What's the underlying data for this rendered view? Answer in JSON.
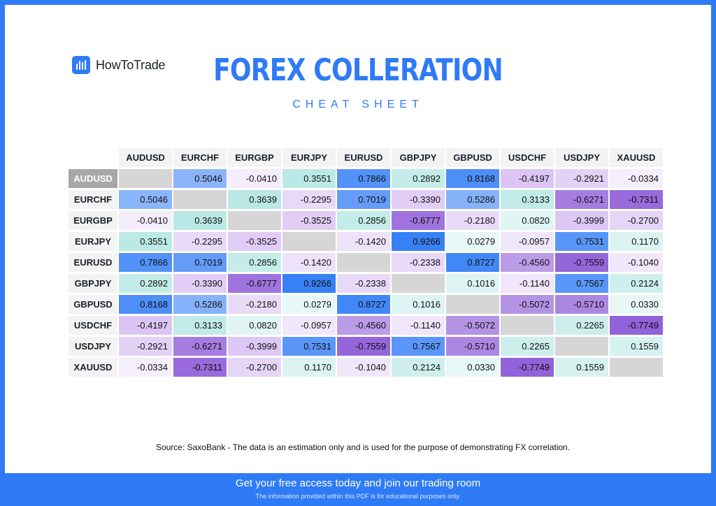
{
  "brand": {
    "name": "HowToTrade",
    "icon": "bar-chart-icon",
    "color": "#2f7bf6"
  },
  "header": {
    "title": "FOREX COLLERATION",
    "subtitle": "CHEAT SHEET"
  },
  "chart_data": {
    "type": "heatmap",
    "columns": [
      "AUDUSD",
      "EURCHF",
      "EURGBP",
      "EURJPY",
      "EURUSD",
      "GBPJPY",
      "GBPUSD",
      "USDCHF",
      "USDJPY",
      "XAUUSD"
    ],
    "rows": [
      {
        "label": "AUDUSD",
        "values": [
          "",
          "0.5046",
          "-0.0410",
          "0.3551",
          "0.7866",
          "0.2892",
          "0.8168",
          "-0.4197",
          "-0.2921",
          "-0.0334"
        ]
      },
      {
        "label": "EURCHF",
        "values": [
          "0.5046",
          "",
          "0.3639",
          "-0.2295",
          "0.7019",
          "-0.3390",
          "0.5286",
          "0.3133",
          "-0.6271",
          "-0.7311"
        ]
      },
      {
        "label": "EURGBP",
        "values": [
          "-0.0410",
          "0.3639",
          "",
          "-0.3525",
          "0.2856",
          "-0.6777",
          "-0.2180",
          "0.0820",
          "-0.3999",
          "-0.2700"
        ]
      },
      {
        "label": "EURJPY",
        "values": [
          "0.3551",
          "-0.2295",
          "-0.3525",
          "",
          "-0.1420",
          "0.9266",
          "0.0279",
          "-0.0957",
          "0.7531",
          "0.1170"
        ]
      },
      {
        "label": "EURUSD",
        "values": [
          "0.7866",
          "0.7019",
          "0.2856",
          "-0.1420",
          "",
          "-0.2338",
          "0.8727",
          "-0.4560",
          "-0.7559",
          "-0.1040"
        ]
      },
      {
        "label": "GBPJPY",
        "values": [
          "0.2892",
          "-0.3390",
          "-0.6777",
          "0.9266",
          "-0.2338",
          "",
          "0.1016",
          "-0.1140",
          "0.7567",
          "0.2124"
        ]
      },
      {
        "label": "GBPUSD",
        "values": [
          "0.8168",
          "0.5286",
          "-0.2180",
          "0.0279",
          "0.8727",
          "0.1016",
          "",
          "-0.5072",
          "-0.5710",
          "0.0330"
        ]
      },
      {
        "label": "USDCHF",
        "values": [
          "-0.4197",
          "0.3133",
          "0.0820",
          "-0.0957",
          "-0.4560",
          "-0.1140",
          "-0.5072",
          "",
          "0.2265",
          "-0.7749"
        ]
      },
      {
        "label": "USDJPY",
        "values": [
          "-0.2921",
          "-0.6271",
          "-0.3999",
          "0.7531",
          "-0.7559",
          "0.7567",
          "-0.5710",
          "0.2265",
          "",
          "0.1559"
        ]
      },
      {
        "label": "XAUUSD",
        "values": [
          "-0.0334",
          "-0.7311",
          "-0.2700",
          "0.1170",
          "-0.1040",
          "0.2124",
          "0.0330",
          "-0.7749",
          "0.1559",
          ""
        ]
      }
    ],
    "colors": {
      "positive": "#2f7bf6",
      "negative": "#7a3fd1",
      "diagonal": "#d6d6d6"
    }
  },
  "source_text": "Source: SaxoBank - The data is an estimation only and is used for the  purpose of demonstrating FX correlation.",
  "footer": {
    "cta": "Get your free access today and join our trading room",
    "note": "The information provided within this PDF is for educational purposes only."
  }
}
